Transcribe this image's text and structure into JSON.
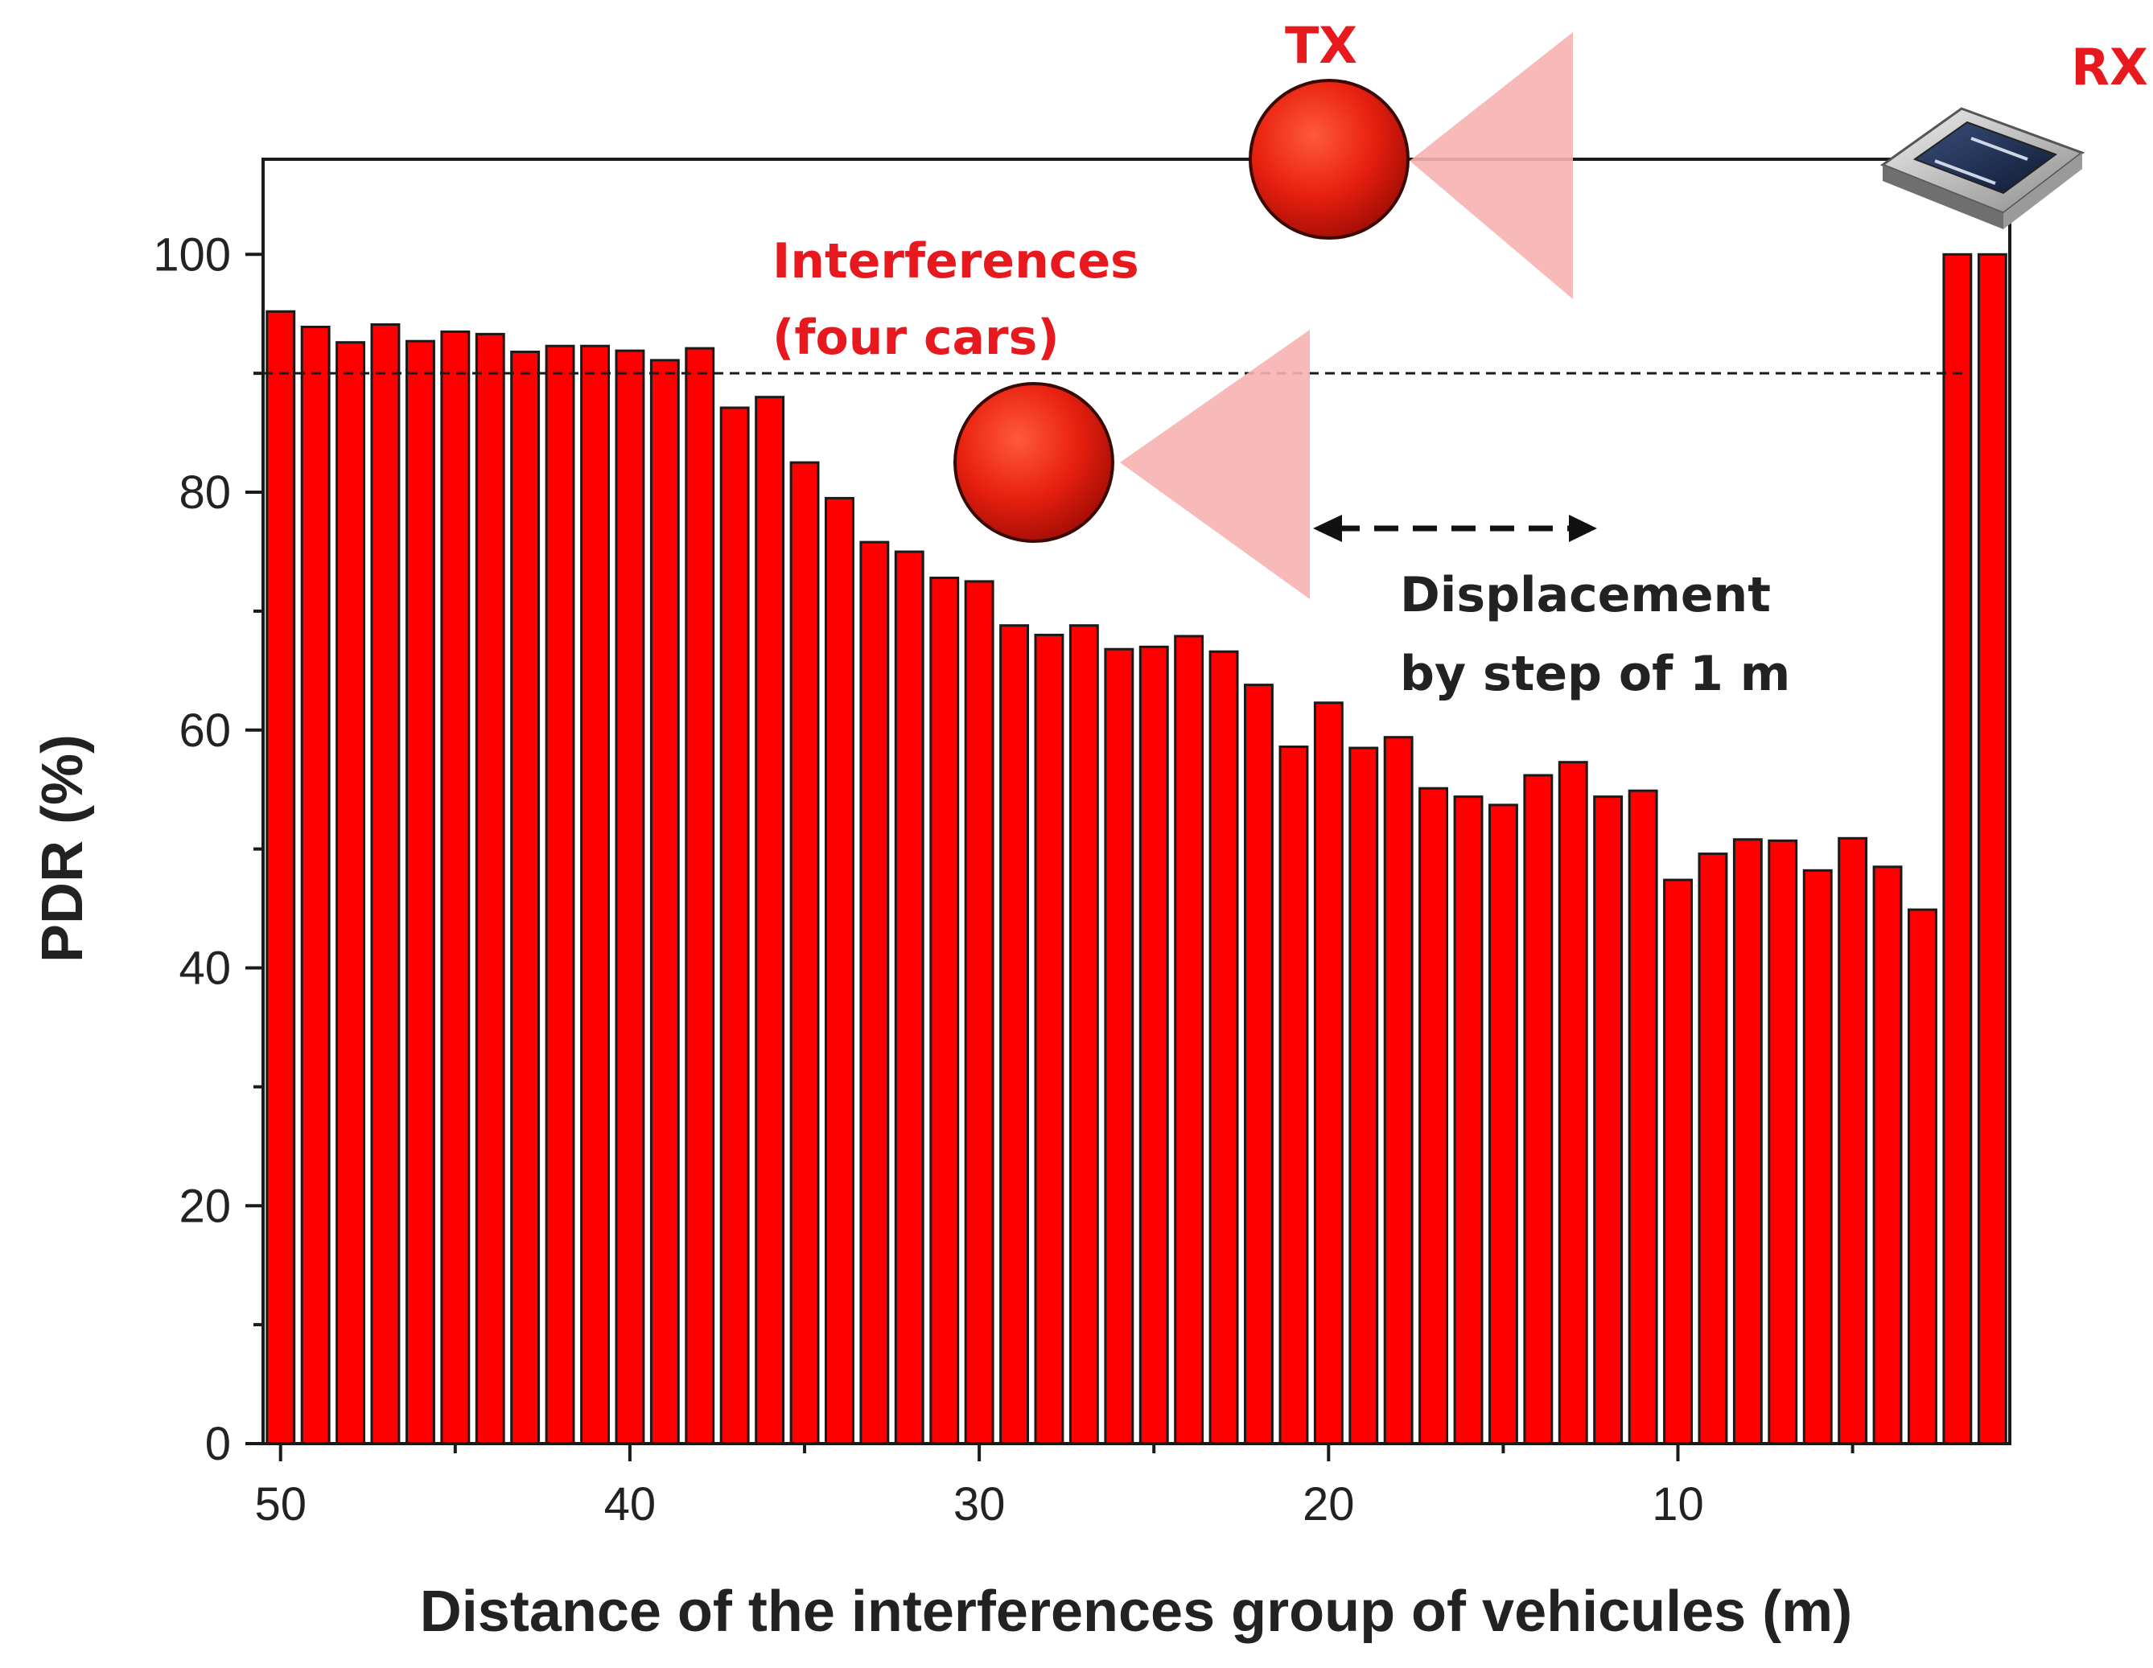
{
  "colors": {
    "bar_fill": "#ff0000",
    "bar_stroke": "#1a1a1a",
    "annotation_red": "#e8191e",
    "annotation_dark": "#222222",
    "beam_pink": "#f7b1b1"
  },
  "icons": [
    "tx-led-icon",
    "interference-led-icon",
    "rx-photodiode-icon",
    "tx-beam-icon",
    "interference-beam-icon",
    "displacement-arrow-icon"
  ],
  "annotations": {
    "tx_label": "TX",
    "rx_label": "RX",
    "interference_line1": "Interferences",
    "interference_line2": "(four cars)",
    "displacement_line1": "Displacement",
    "displacement_line2": "by step of 1 m"
  },
  "chart_data": {
    "type": "bar",
    "xlabel": "Distance of the interferences group of vehicules (m)",
    "ylabel": "PDR (%)",
    "x_reversed": true,
    "xlim": [
      50.5,
      0.5
    ],
    "ylim": [
      0,
      108
    ],
    "x_ticks": [
      50,
      40,
      30,
      20,
      10
    ],
    "y_ticks": [
      0,
      20,
      40,
      60,
      80,
      100
    ],
    "threshold": 90,
    "x": [
      50,
      49,
      48,
      47,
      46,
      45,
      44,
      43,
      42,
      41,
      40,
      39,
      38,
      37,
      36,
      35,
      34,
      33,
      32,
      31,
      30,
      29,
      28,
      27,
      26,
      25,
      24,
      23,
      22,
      21,
      20,
      19,
      18,
      17,
      16,
      15,
      14,
      13,
      12,
      11,
      10,
      9,
      8,
      7,
      6,
      5,
      4,
      3,
      2,
      1
    ],
    "values": [
      95.2,
      93.9,
      92.6,
      94.1,
      92.7,
      93.5,
      93.3,
      91.8,
      92.3,
      92.3,
      91.9,
      91.1,
      92.1,
      87.1,
      88.0,
      82.5,
      79.5,
      75.8,
      75.0,
      72.8,
      72.5,
      68.8,
      68.0,
      68.8,
      66.8,
      67.0,
      67.9,
      66.6,
      63.8,
      58.6,
      62.3,
      58.5,
      59.4,
      55.1,
      54.4,
      53.7,
      56.2,
      57.3,
      54.4,
      54.9,
      47.4,
      49.6,
      50.8,
      50.7,
      48.2,
      50.9,
      48.5,
      44.9,
      100.0,
      100.0
    ]
  }
}
